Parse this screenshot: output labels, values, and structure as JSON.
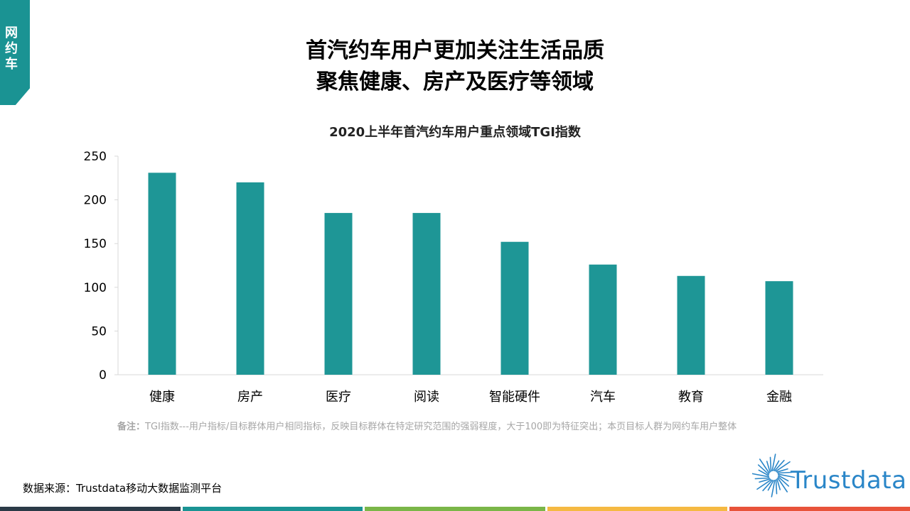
{
  "side_tag": "网\n约\n车",
  "title_line1": "首汽约车用户更加关注生活品质",
  "title_line2": "聚焦健康、房产及医疗等领域",
  "footnote_label": "备注：",
  "footnote_text": "TGI指数---用户指标/目标群体用户相同指标，反映目标群体在特定研究范围的强弱程度，大于100即为特征突出；本页目标人群为网约车用户整体",
  "source": "数据来源：Trustdata移动大数据监测平台",
  "logo_text": "Trustdata",
  "colors": {
    "accent": "#1a9393",
    "bar": "#1e9696",
    "bottom_bar": [
      "#2b3a47",
      "#1a9393",
      "#7ab648",
      "#f5b942",
      "#e8533a"
    ]
  },
  "chart_data": {
    "type": "bar",
    "title": "2020上半年首汽约车用户重点领域TGI指数",
    "categories": [
      "健康",
      "房产",
      "医疗",
      "阅读",
      "智能硬件",
      "汽车",
      "教育",
      "金融"
    ],
    "values": [
      231,
      220,
      185,
      185,
      152,
      126,
      113,
      107
    ],
    "ylim": [
      0,
      250
    ],
    "yticks": [
      0,
      50,
      100,
      150,
      200,
      250
    ],
    "grid": false,
    "legend": "none"
  }
}
